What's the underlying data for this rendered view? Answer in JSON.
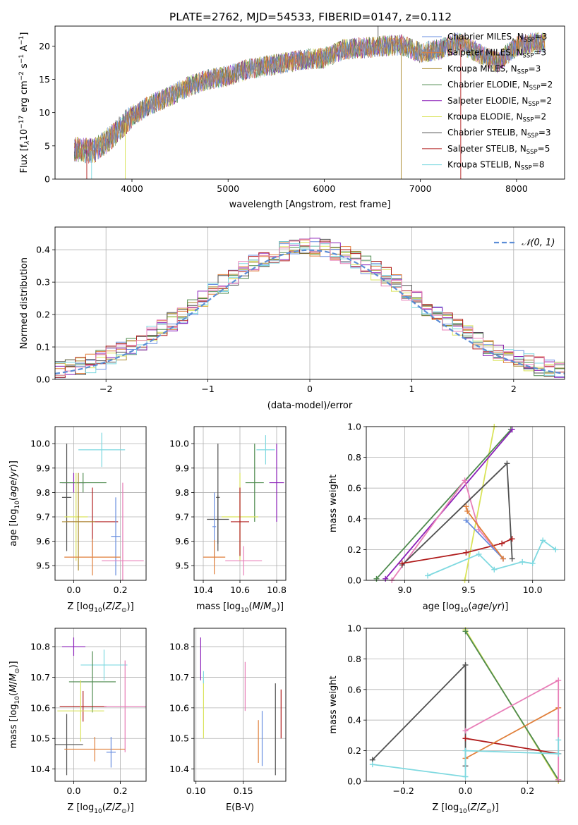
{
  "figure": {
    "title": "PLATE=2762, MJD=54533, FIBERID=0147, z=0.112",
    "colors": {
      "Chabrier MILES": "#6A8FE0",
      "Salpeter MILES": "#E07F3A",
      "Kroupa MILES": "#A8882A",
      "Chabrier ELODIE": "#4E8A4E",
      "Salpeter ELODIE": "#8A1FB8",
      "Kroupa ELODIE": "#D9E35A",
      "Chabrier STELIB": "#505050",
      "Salpeter STELIB": "#B01C1C",
      "Kroupa STELIB": "#7FD9E0",
      "pink": "#E87FB8"
    }
  },
  "chart_data": [
    {
      "id": "spectrum",
      "type": "line",
      "xlabel": "wavelength [Angstrom, rest frame]",
      "ylabel": "Flux [f_λ10^-17 erg cm^-2 s^-1 A^-1]",
      "xlim": [
        3200,
        8500
      ],
      "ylim": [
        0,
        23
      ],
      "xticks": [
        "4000",
        "5000",
        "6000",
        "7000",
        "8000"
      ],
      "yticks": [
        "0",
        "5",
        "10",
        "15",
        "20"
      ],
      "x": [
        3400,
        3600,
        3800,
        4000,
        4200,
        4400,
        4600,
        4800,
        5000,
        5200,
        5400,
        5600,
        5800,
        6000,
        6200,
        6400,
        6600,
        6800,
        7000,
        7200,
        7400,
        7600,
        7800,
        8000,
        8200
      ],
      "values": [
        4.5,
        4.2,
        6.5,
        9.5,
        11.2,
        12.5,
        14,
        15,
        15.5,
        16.5,
        17,
        17.5,
        18,
        18.2,
        19.5,
        19.7,
        20,
        20.2,
        19,
        19.5,
        20.5,
        19,
        17.5,
        20,
        20.5
      ],
      "legend": [
        {
          "label": "Chabrier MILES, N",
          "sub": "SSP",
          "tail": "=3"
        },
        {
          "label": "Salpeter MILES, N",
          "sub": "SSP",
          "tail": "=3"
        },
        {
          "label": "Kroupa MILES, N",
          "sub": "SSP",
          "tail": "=3"
        },
        {
          "label": "Chabrier ELODIE, N",
          "sub": "SSP",
          "tail": "=2"
        },
        {
          "label": "Salpeter ELODIE, N",
          "sub": "SSP",
          "tail": "=2"
        },
        {
          "label": "Kroupa ELODIE, N",
          "sub": "SSP",
          "tail": "=2"
        },
        {
          "label": "Chabrier STELIB, N",
          "sub": "SSP",
          "tail": "=3"
        },
        {
          "label": "Salpeter STELIB, N",
          "sub": "SSP",
          "tail": "=5"
        },
        {
          "label": "Kroupa STELIB, N",
          "sub": "SSP",
          "tail": "=8"
        }
      ],
      "legend_position": "right"
    },
    {
      "id": "residuals",
      "type": "line",
      "xlabel": "(data-model)/error",
      "ylabel": "Normed distribution",
      "xlim": [
        -2.5,
        2.5
      ],
      "ylim": [
        0,
        0.47
      ],
      "xticks": [
        "−2",
        "−1",
        "0",
        "1",
        "2"
      ],
      "yticks": [
        "0.0",
        "0.1",
        "0.2",
        "0.3",
        "0.4"
      ],
      "grid": true,
      "legend": "𝒩(0, 1)",
      "legend_position": "top-right"
    },
    {
      "id": "age-vs-Z",
      "type": "scatter",
      "xlabel": "Z [log10(Z/Z⊙)]",
      "ylabel": "age  [log10(age/yr)]",
      "xlim": [
        -0.08,
        0.31
      ],
      "ylim": [
        9.44,
        10.07
      ],
      "xticks": [
        "0.0",
        "0.2"
      ],
      "yticks": [
        "9.5",
        "9.6",
        "9.7",
        "9.8",
        "9.9",
        "10.0"
      ],
      "grid": true,
      "points": [
        {
          "s": "Kroupa STELIB",
          "x": 0.12,
          "y": 9.975,
          "ex": 0.1,
          "ey": 0.07
        },
        {
          "s": "Chabrier STELIB",
          "x": -0.03,
          "y": 9.78,
          "ex": 0.02,
          "ey": 0.22
        },
        {
          "s": "Salpeter ELODIE",
          "x": 0.0,
          "y": 9.84,
          "ex": 0.05,
          "ey": 0.04
        },
        {
          "s": "Chabrier ELODIE",
          "x": 0.04,
          "y": 9.84,
          "ex": 0.1,
          "ey": 0.04
        },
        {
          "s": "Kroupa ELODIE",
          "x": 0.01,
          "y": 9.7,
          "ex": 0.05,
          "ey": 0.18
        },
        {
          "s": "Salpeter STELIB",
          "x": 0.08,
          "y": 9.68,
          "ex": 0.11,
          "ey": 0.14
        },
        {
          "s": "Kroupa MILES",
          "x": 0.02,
          "y": 9.68,
          "ex": 0.07,
          "ey": 0.2
        },
        {
          "s": "Chabrier MILES",
          "x": 0.18,
          "y": 9.62,
          "ex": 0.02,
          "ey": 0.16
        },
        {
          "s": "Salpeter MILES",
          "x": 0.08,
          "y": 9.535,
          "ex": 0.12,
          "ey": 0.075
        },
        {
          "s": "pink",
          "x": 0.21,
          "y": 9.52,
          "ex": 0.09,
          "ey": 0.32
        }
      ]
    },
    {
      "id": "age-vs-mass",
      "type": "scatter",
      "xlabel": "mass [log10(M/M⊙)]",
      "ylabel": "",
      "xlim": [
        10.35,
        10.85
      ],
      "ylim": [
        9.44,
        10.07
      ],
      "xticks": [
        "10.4",
        "10.6",
        "10.8"
      ],
      "yticks": [
        "9.5",
        "9.6",
        "9.7",
        "9.8",
        "9.9",
        "10.0"
      ],
      "grid": true,
      "points": [
        {
          "s": "Kroupa STELIB",
          "x": 10.74,
          "y": 9.975,
          "ex": 0.05,
          "ey": 0.06
        },
        {
          "s": "Chabrier STELIB",
          "x": 10.48,
          "y": 9.78,
          "ex": 0.01,
          "ey": 0.22
        },
        {
          "s": "Salpeter ELODIE",
          "x": 10.8,
          "y": 9.84,
          "ex": 0.04,
          "ey": 0.16
        },
        {
          "s": "Chabrier ELODIE",
          "x": 10.68,
          "y": 9.84,
          "ex": 0.05,
          "ey": 0.16
        },
        {
          "s": "Kroupa ELODIE",
          "x": 10.6,
          "y": 9.7,
          "ex": 0.1,
          "ey": 0.18
        },
        {
          "s": "Salpeter STELIB",
          "x": 10.6,
          "y": 9.68,
          "ex": 0.05,
          "ey": 0.14
        },
        {
          "s": "Chabrier STELIB",
          "x": 10.48,
          "y": 9.69,
          "ex": 0.06,
          "ey": 0.1
        },
        {
          "s": "Chabrier MILES",
          "x": 10.46,
          "y": 9.66,
          "ex": 0.01,
          "ey": 0.14
        },
        {
          "s": "Salpeter MILES",
          "x": 10.46,
          "y": 9.535,
          "ex": 0.06,
          "ey": 0.07
        },
        {
          "s": "pink",
          "x": 10.62,
          "y": 9.52,
          "ex": 0.1,
          "ey": 0.06
        }
      ]
    },
    {
      "id": "massweight-vs-age",
      "type": "line",
      "xlabel": "age  [log10(age/yr)]",
      "ylabel": "mass weight",
      "xlim": [
        8.7,
        10.25
      ],
      "ylim": [
        0,
        1
      ],
      "xticks": [
        "9.0",
        "9.5",
        "10.0"
      ],
      "yticks": [
        "0.0",
        "0.2",
        "0.4",
        "0.6",
        "0.8",
        "1.0"
      ],
      "grid": true,
      "series": [
        {
          "s": "Kroupa ELODIE",
          "x": [
            9.47,
            9.7
          ],
          "y": [
            0.0,
            1.0
          ]
        },
        {
          "s": "Chabrier ELODIE",
          "x": [
            8.78,
            9.83
          ],
          "y": [
            0.01,
            0.98
          ]
        },
        {
          "s": "Salpeter ELODIE",
          "x": [
            8.85,
            9.84
          ],
          "y": [
            0.01,
            0.98
          ]
        },
        {
          "s": "pink",
          "x": [
            8.9,
            9.47,
            9.58,
            9.77
          ],
          "y": [
            0.0,
            0.65,
            0.33,
            0.14
          ]
        },
        {
          "s": "Chabrier STELIB",
          "x": [
            8.98,
            9.8,
            9.84
          ],
          "y": [
            0.1,
            0.76,
            0.14
          ]
        },
        {
          "s": "Salpeter STELIB",
          "x": [
            8.98,
            9.48,
            9.76,
            9.84
          ],
          "y": [
            0.11,
            0.18,
            0.24,
            0.27
          ]
        },
        {
          "s": "Chabrier MILES",
          "x": [
            9.48,
            9.77
          ],
          "y": [
            0.39,
            0.14
          ]
        },
        {
          "s": "Salpeter MILES",
          "x": [
            9.48,
            9.49,
            9.77
          ],
          "y": [
            0.48,
            0.45,
            0.14
          ]
        },
        {
          "s": "Kroupa STELIB",
          "x": [
            9.18,
            9.58,
            9.7,
            9.92,
            10.0,
            10.08,
            10.18
          ],
          "y": [
            0.03,
            0.17,
            0.07,
            0.12,
            0.11,
            0.26,
            0.2
          ]
        }
      ]
    },
    {
      "id": "mass-vs-Z",
      "type": "scatter",
      "xlabel": "Z [log10(Z/Z⊙)]",
      "ylabel": "mass [log10(M/M⊙)]",
      "xlim": [
        -0.08,
        0.31
      ],
      "ylim": [
        10.36,
        10.86
      ],
      "xticks": [
        "0.0",
        "0.2"
      ],
      "yticks": [
        "10.4",
        "10.5",
        "10.6",
        "10.7",
        "10.8"
      ],
      "grid": true,
      "points": [
        {
          "s": "Salpeter ELODIE",
          "x": 0.0,
          "y": 10.8,
          "ex": 0.05,
          "ey": 0.03
        },
        {
          "s": "Kroupa STELIB",
          "x": 0.13,
          "y": 10.74,
          "ex": 0.1,
          "ey": 0.05
        },
        {
          "s": "Chabrier ELODIE",
          "x": 0.08,
          "y": 10.685,
          "ex": 0.1,
          "ey": 0.1
        },
        {
          "s": "Salpeter STELIB",
          "x": 0.04,
          "y": 10.605,
          "ex": 0.1,
          "ey": 0.05
        },
        {
          "s": "pink",
          "x": 0.22,
          "y": 10.605,
          "ex": 0.09,
          "ey": 0.15
        },
        {
          "s": "Kroupa ELODIE",
          "x": 0.03,
          "y": 10.59,
          "ex": 0.1,
          "ey": 0.1
        },
        {
          "s": "Chabrier STELIB",
          "x": -0.03,
          "y": 10.48,
          "ex": 0.07,
          "ey": 0.1
        },
        {
          "s": "Salpeter MILES",
          "x": 0.09,
          "y": 10.465,
          "ex": 0.13,
          "ey": 0.04
        },
        {
          "s": "Chabrier MILES",
          "x": 0.16,
          "y": 10.455,
          "ex": 0.02,
          "ey": 0.05
        }
      ]
    },
    {
      "id": "mass-vs-EBV",
      "type": "scatter",
      "xlabel": "E(B-V)",
      "ylabel": "",
      "xlim": [
        0.098,
        0.195
      ],
      "ylim": [
        10.36,
        10.86
      ],
      "xticks": [
        "0.10",
        "0.15"
      ],
      "yticks": [
        "10.4",
        "10.5",
        "10.6",
        "10.7",
        "10.8"
      ],
      "grid": true,
      "points": [
        {
          "s": "Salpeter ELODIE",
          "x": 0.105,
          "y": 10.76,
          "ex": 0.0,
          "ey": 0.07
        },
        {
          "s": "Kroupa ELODIE",
          "x": 0.108,
          "y": 10.6,
          "ex": 0.0,
          "ey": 0.1
        },
        {
          "s": "Kroupa STELIB",
          "x": 0.108,
          "y": 10.7,
          "ex": 0.0,
          "ey": 0.02
        },
        {
          "s": "pink",
          "x": 0.152,
          "y": 10.67,
          "ex": 0.0,
          "ey": 0.08
        },
        {
          "s": "Salpeter MILES",
          "x": 0.166,
          "y": 10.49,
          "ex": 0.0,
          "ey": 0.07
        },
        {
          "s": "Chabrier MILES",
          "x": 0.17,
          "y": 10.5,
          "ex": 0.0,
          "ey": 0.09
        },
        {
          "s": "Chabrier STELIB",
          "x": 0.184,
          "y": 10.53,
          "ex": 0.0,
          "ey": 0.15
        },
        {
          "s": "Salpeter STELIB",
          "x": 0.19,
          "y": 10.58,
          "ex": 0.0,
          "ey": 0.08
        }
      ]
    },
    {
      "id": "massweight-vs-Z",
      "type": "line",
      "xlabel": "Z [log10(Z/Z⊙)]",
      "ylabel": "mass weight",
      "xlim": [
        -0.32,
        0.32
      ],
      "ylim": [
        0,
        1
      ],
      "xticks": [
        "−0.2",
        "0.0",
        "0.2"
      ],
      "yticks": [
        "0.0",
        "0.2",
        "0.4",
        "0.6",
        "0.8",
        "1.0"
      ],
      "grid": true,
      "series": [
        {
          "s": "Kroupa ELODIE",
          "x": [
            0.0,
            0.3
          ],
          "y": [
            0.99,
            0.0
          ]
        },
        {
          "s": "Chabrier ELODIE",
          "x": [
            0.0,
            0.3
          ],
          "y": [
            0.98,
            0.01
          ]
        },
        {
          "s": "Chabrier STELIB",
          "x": [
            -0.3,
            0.0,
            0.0
          ],
          "y": [
            0.14,
            0.76,
            0.1
          ]
        },
        {
          "s": "Salpeter STELIB",
          "x": [
            0.0,
            0.3
          ],
          "y": [
            0.28,
            0.18
          ]
        },
        {
          "s": "Salpeter MILES",
          "x": [
            0.0,
            0.3
          ],
          "y": [
            0.15,
            0.48
          ]
        },
        {
          "s": "pink",
          "x": [
            0.0,
            0.3,
            0.3
          ],
          "y": [
            0.33,
            0.66,
            0.01
          ]
        },
        {
          "s": "Kroupa STELIB",
          "x": [
            -0.3,
            0.0,
            0.0,
            0.3,
            0.3
          ],
          "y": [
            0.11,
            0.03,
            0.2,
            0.18,
            0.27
          ]
        }
      ]
    }
  ]
}
